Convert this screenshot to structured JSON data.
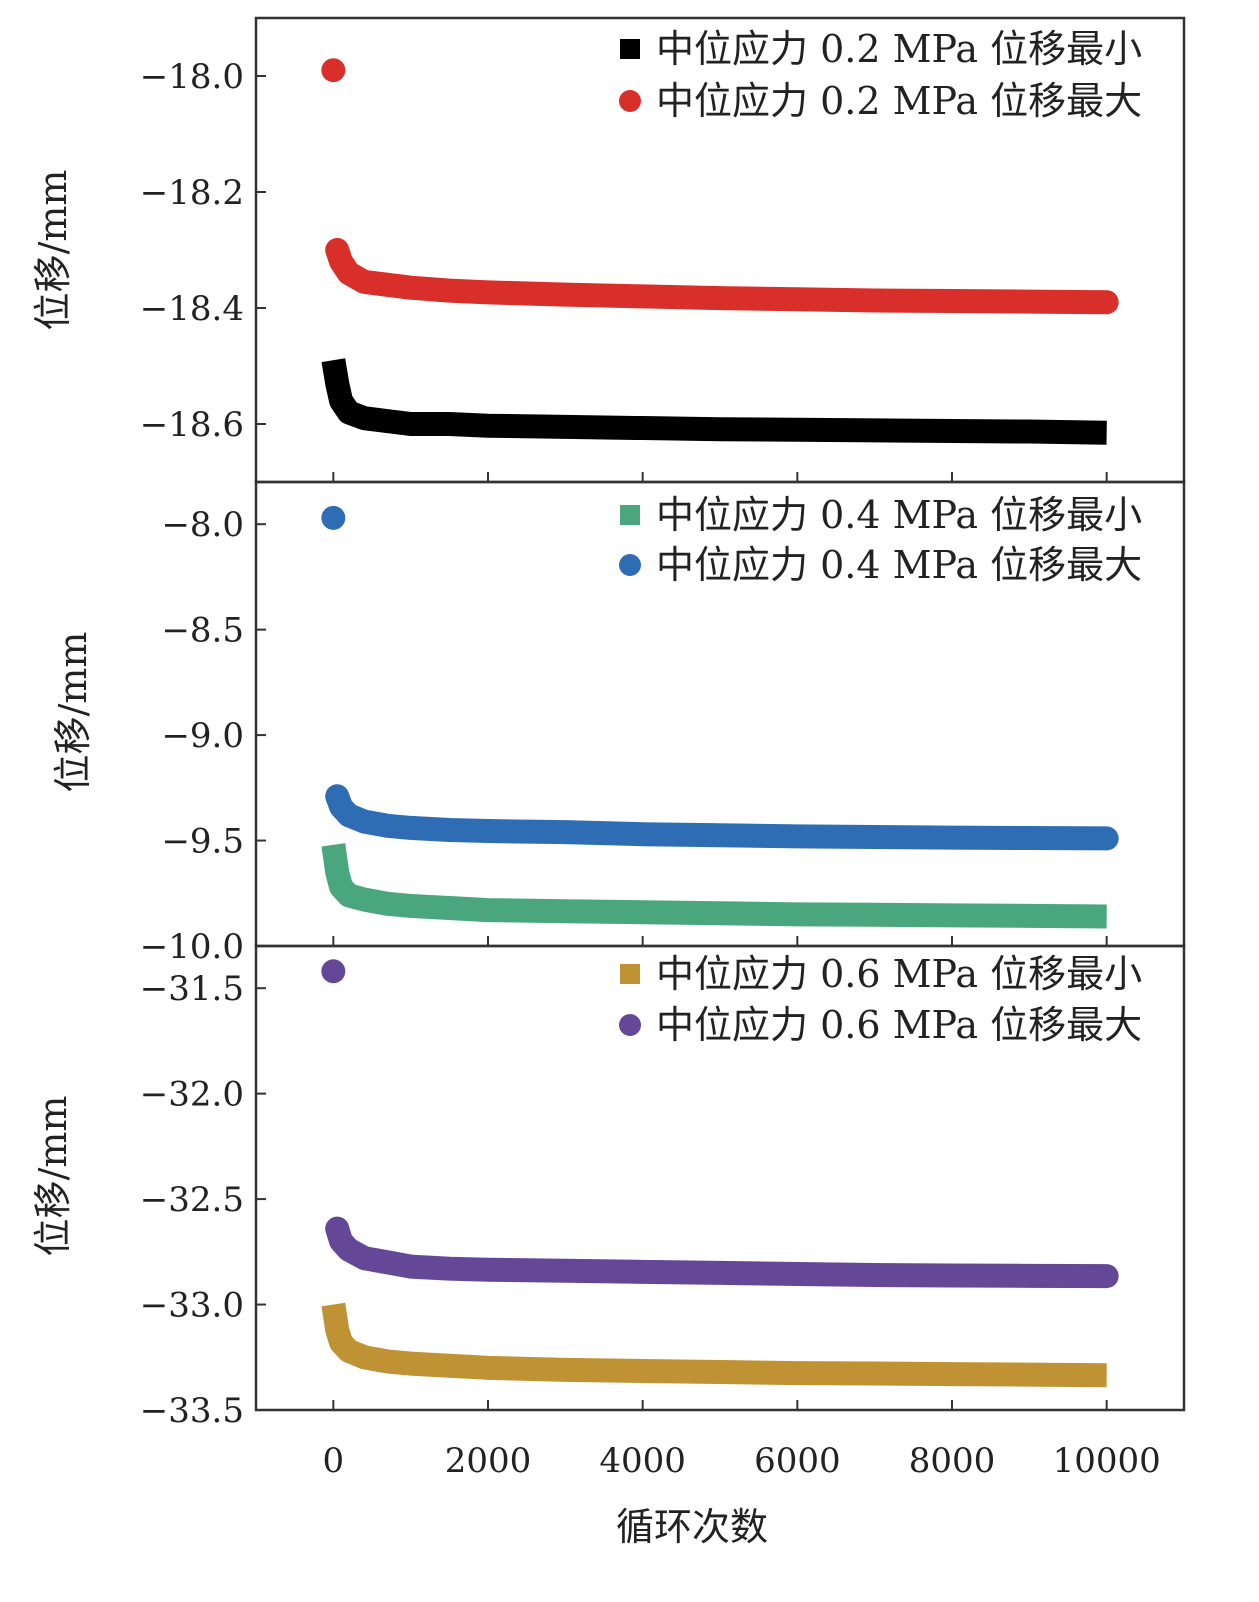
{
  "figure": {
    "xlabel": "循环次数",
    "xticks": [
      "0",
      "2000",
      "4000",
      "6000",
      "8000",
      "10000"
    ],
    "x_range": [
      -1000,
      11000
    ]
  },
  "chart_data": [
    {
      "type": "scatter",
      "ylabel": "位移/mm",
      "ylim": [
        -18.7,
        -17.9
      ],
      "yticks": [
        "−18.0",
        "−18.2",
        "−18.4",
        "−18.6"
      ],
      "ytick_values": [
        -18.0,
        -18.2,
        -18.4,
        -18.6
      ],
      "legend_position": "top-right",
      "series": [
        {
          "name": "中位应力 0.2 MPa 位移最小",
          "marker": "square",
          "color": "#000000",
          "x": [
            0,
            50,
            100,
            200,
            400,
            700,
            1000,
            1500,
            2000,
            3000,
            4000,
            5000,
            6000,
            7000,
            8000,
            9000,
            10000
          ],
          "y": [
            -18.49,
            -18.53,
            -18.56,
            -18.58,
            -18.59,
            -18.595,
            -18.6,
            -18.6,
            -18.603,
            -18.605,
            -18.607,
            -18.609,
            -18.61,
            -18.611,
            -18.612,
            -18.613,
            -18.615
          ]
        },
        {
          "name": "中位应力 0.2 MPa 位移最大",
          "marker": "circle",
          "color": "#d92f2a",
          "x": [
            0,
            50,
            100,
            200,
            400,
            700,
            1000,
            1500,
            2000,
            3000,
            4000,
            5000,
            6000,
            7000,
            8000,
            9000,
            10000
          ],
          "y": [
            -17.99,
            -18.3,
            -18.32,
            -18.34,
            -18.355,
            -18.36,
            -18.365,
            -18.37,
            -18.373,
            -18.377,
            -18.38,
            -18.383,
            -18.385,
            -18.387,
            -18.388,
            -18.389,
            -18.39
          ]
        }
      ]
    },
    {
      "type": "scatter",
      "ylabel": "位移/mm",
      "ylim": [
        -10.0,
        -7.8
      ],
      "yticks": [
        "−8.0",
        "−8.5",
        "−9.0",
        "−9.5",
        "−10.0"
      ],
      "ytick_values": [
        -8.0,
        -8.5,
        -9.0,
        -9.5,
        -10.0
      ],
      "legend_position": "top-right",
      "series": [
        {
          "name": "中位应力 0.4 MPa 位移最小",
          "marker": "square",
          "color": "#4aa67c",
          "x": [
            0,
            50,
            100,
            200,
            400,
            700,
            1000,
            1500,
            2000,
            3000,
            4000,
            5000,
            6000,
            7000,
            8000,
            9000,
            10000
          ],
          "y": [
            -9.52,
            -9.65,
            -9.72,
            -9.76,
            -9.78,
            -9.8,
            -9.81,
            -9.82,
            -9.83,
            -9.835,
            -9.84,
            -9.845,
            -9.85,
            -9.852,
            -9.855,
            -9.857,
            -9.86
          ]
        },
        {
          "name": "中位应力 0.4 MPa 位移最大",
          "marker": "circle",
          "color": "#2e6db4",
          "x": [
            0,
            50,
            100,
            200,
            400,
            700,
            1000,
            1500,
            2000,
            3000,
            4000,
            5000,
            6000,
            7000,
            8000,
            9000,
            10000
          ],
          "y": [
            -7.97,
            -9.29,
            -9.34,
            -9.38,
            -9.41,
            -9.43,
            -9.44,
            -9.45,
            -9.455,
            -9.46,
            -9.47,
            -9.475,
            -9.48,
            -9.483,
            -9.486,
            -9.488,
            -9.49
          ]
        }
      ]
    },
    {
      "type": "scatter",
      "ylabel": "位移/mm",
      "ylim": [
        -33.5,
        -31.3
      ],
      "yticks": [
        "−31.5",
        "−32.0",
        "−32.5",
        "−33.0",
        "−33.5"
      ],
      "ytick_values": [
        -31.5,
        -32.0,
        -32.5,
        -33.0,
        -33.5
      ],
      "legend_position": "top-right",
      "series": [
        {
          "name": "中位应力 0.6 MPa 位移最小",
          "marker": "square",
          "color": "#bf9233",
          "x": [
            0,
            50,
            100,
            200,
            400,
            700,
            1000,
            1500,
            2000,
            3000,
            4000,
            5000,
            6000,
            7000,
            8000,
            9000,
            10000
          ],
          "y": [
            -33.0,
            -33.12,
            -33.18,
            -33.22,
            -33.25,
            -33.27,
            -33.28,
            -33.29,
            -33.3,
            -33.31,
            -33.315,
            -33.32,
            -33.325,
            -33.327,
            -33.33,
            -33.332,
            -33.335
          ]
        },
        {
          "name": "中位应力 0.6 MPa 位移最大",
          "marker": "circle",
          "color": "#654797",
          "x": [
            0,
            50,
            100,
            200,
            400,
            700,
            1000,
            1500,
            2000,
            3000,
            4000,
            5000,
            6000,
            7000,
            8000,
            9000,
            10000
          ],
          "y": [
            -31.42,
            -32.64,
            -32.7,
            -32.74,
            -32.78,
            -32.8,
            -32.82,
            -32.83,
            -32.835,
            -32.84,
            -32.845,
            -32.85,
            -32.855,
            -32.86,
            -32.862,
            -32.864,
            -32.865
          ]
        }
      ]
    }
  ]
}
